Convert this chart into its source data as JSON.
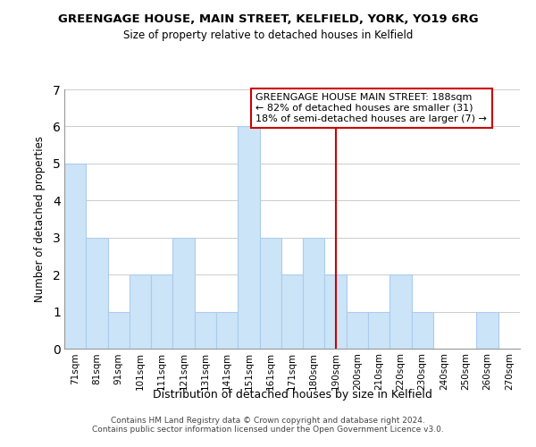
{
  "title": "GREENGAGE HOUSE, MAIN STREET, KELFIELD, YORK, YO19 6RG",
  "subtitle": "Size of property relative to detached houses in Kelfield",
  "xlabel": "Distribution of detached houses by size in Kelfield",
  "ylabel": "Number of detached properties",
  "bin_labels": [
    "71sqm",
    "81sqm",
    "91sqm",
    "101sqm",
    "111sqm",
    "121sqm",
    "131sqm",
    "141sqm",
    "151sqm",
    "161sqm",
    "171sqm",
    "180sqm",
    "190sqm",
    "200sqm",
    "210sqm",
    "220sqm",
    "230sqm",
    "240sqm",
    "250sqm",
    "260sqm",
    "270sqm"
  ],
  "bar_heights": [
    5,
    3,
    1,
    2,
    2,
    3,
    1,
    1,
    6,
    3,
    2,
    3,
    2,
    1,
    1,
    2,
    1,
    0,
    0,
    1,
    0
  ],
  "bar_color": "#cce4f7",
  "bar_edge_color": "#aaccee",
  "grid_color": "#cccccc",
  "reference_line_x_label": "190sqm",
  "reference_line_color": "#cc0000",
  "annotation_title": "GREENGAGE HOUSE MAIN STREET: 188sqm",
  "annotation_line1": "← 82% of detached houses are smaller (31)",
  "annotation_line2": "18% of semi-detached houses are larger (7) →",
  "annotation_box_edge_color": "#cc0000",
  "ylim": [
    0,
    7
  ],
  "yticks": [
    0,
    1,
    2,
    3,
    4,
    5,
    6,
    7
  ],
  "footnote1": "Contains HM Land Registry data © Crown copyright and database right 2024.",
  "footnote2": "Contains public sector information licensed under the Open Government Licence v3.0."
}
